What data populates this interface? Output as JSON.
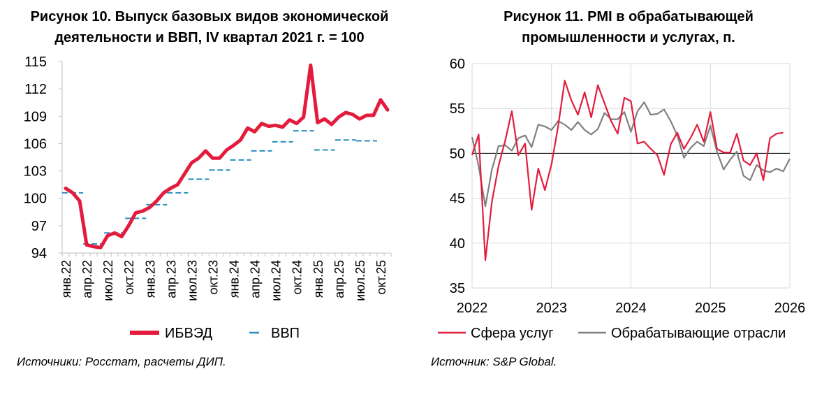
{
  "chart_data": [
    {
      "type": "line",
      "title": [
        "Рисунок 10. Выпуск базовых видов экономической",
        "деятельности и ВВП, IV квартал 2021 г. = 100"
      ],
      "ylim": [
        94,
        115
      ],
      "yticks": [
        "94",
        "97",
        "100",
        "103",
        "106",
        "109",
        "112",
        "115"
      ],
      "xticks": [
        "янв.22",
        "апр.22",
        "июл.22",
        "окт.22",
        "янв.23",
        "апр.23",
        "июл.23",
        "окт.23",
        "янв.24",
        "апр.24",
        "июл.24",
        "окт.24",
        "янв.25",
        "апр.25",
        "июл.25",
        "окт.25"
      ],
      "series": [
        {
          "name": "ИБВЭД",
          "color": "#e31c3d",
          "style": "solid",
          "values": [
            101.1,
            100.6,
            99.7,
            94.9,
            94.7,
            94.6,
            95.9,
            96.2,
            95.8,
            97.0,
            98.4,
            98.6,
            99.0,
            99.7,
            100.6,
            101.1,
            101.5,
            102.7,
            103.9,
            104.4,
            105.2,
            104.4,
            104.4,
            105.3,
            105.8,
            106.4,
            107.7,
            107.3,
            108.2,
            107.9,
            108.0,
            107.8,
            108.6,
            108.2,
            108.9,
            114.6,
            108.3,
            108.7,
            108.1,
            108.9,
            109.4,
            109.2,
            108.7,
            109.1,
            109.1,
            110.8,
            109.7
          ]
        },
        {
          "name": "ВВП",
          "color": "#2a8fbd",
          "style": "dash",
          "values": [
            100.6,
            95.0,
            96.2,
            97.8,
            99.3,
            100.6,
            102.1,
            103.1,
            104.2,
            105.2,
            106.2,
            107.4,
            105.3,
            106.4,
            106.3
          ]
        }
      ],
      "legend": [
        "ИБВЭД",
        "ВВП"
      ],
      "legend_position": "bottom",
      "source": "Источники: Росстат, расчеты ДИП."
    },
    {
      "type": "line",
      "title": [
        "Рисунок 11. PMI в обрабатывающей",
        "промышленности и услугах, п."
      ],
      "ylim": [
        35,
        60
      ],
      "yticks": [
        "35",
        "40",
        "45",
        "50",
        "55",
        "60"
      ],
      "xticks": [
        "2022",
        "2023",
        "2024",
        "2025",
        "2026"
      ],
      "xlim": [
        2022,
        2026
      ],
      "reference_line": 50,
      "series": [
        {
          "name": "Сфера услуг",
          "color": "#e31c3d",
          "x": [
            2022.0,
            2022.083,
            2022.167,
            2022.25,
            2022.333,
            2022.417,
            2022.5,
            2022.583,
            2022.667,
            2022.75,
            2022.833,
            2022.917,
            2023.0,
            2023.083,
            2023.167,
            2023.25,
            2023.333,
            2023.417,
            2023.5,
            2023.583,
            2023.667,
            2023.75,
            2023.833,
            2023.917,
            2024.0,
            2024.083,
            2024.167,
            2024.25,
            2024.333,
            2024.417,
            2024.5,
            2024.583,
            2024.667,
            2024.75,
            2024.833,
            2024.917,
            2025.0,
            2025.083,
            2025.167,
            2025.25,
            2025.333,
            2025.417,
            2025.5,
            2025.583,
            2025.667,
            2025.75,
            2025.833,
            2025.917
          ],
          "values": [
            49.8,
            52.1,
            38.1,
            44.6,
            48.6,
            51.4,
            54.7,
            49.8,
            51.1,
            43.7,
            48.3,
            45.9,
            48.8,
            53.0,
            58.1,
            55.9,
            54.3,
            56.8,
            54.0,
            57.6,
            55.6,
            53.6,
            52.2,
            56.2,
            55.8,
            51.1,
            51.3,
            50.5,
            49.8,
            47.6,
            51.0,
            52.3,
            50.5,
            51.7,
            53.2,
            51.3,
            54.6,
            50.5,
            50.1,
            50.1,
            52.2,
            49.2,
            48.7,
            50.0,
            47.0,
            51.7,
            52.2,
            52.3
          ]
        },
        {
          "name": "Обрабатывающие отрасли",
          "color": "#808080",
          "x": [
            2022.0,
            2022.083,
            2022.167,
            2022.25,
            2022.333,
            2022.417,
            2022.5,
            2022.583,
            2022.667,
            2022.75,
            2022.833,
            2022.917,
            2023.0,
            2023.083,
            2023.167,
            2023.25,
            2023.333,
            2023.417,
            2023.5,
            2023.583,
            2023.667,
            2023.75,
            2023.833,
            2023.917,
            2024.0,
            2024.083,
            2024.167,
            2024.25,
            2024.333,
            2024.417,
            2024.5,
            2024.583,
            2024.667,
            2024.75,
            2024.833,
            2024.917,
            2025.0,
            2025.083,
            2025.167,
            2025.25,
            2025.333,
            2025.417,
            2025.5,
            2025.583,
            2025.667,
            2025.75,
            2025.833,
            2025.917,
            2026.0
          ],
          "values": [
            51.8,
            48.6,
            44.1,
            48.2,
            50.8,
            50.9,
            50.3,
            51.7,
            52.0,
            50.7,
            53.2,
            53.0,
            52.6,
            53.6,
            53.2,
            52.6,
            53.5,
            52.6,
            52.1,
            52.7,
            54.5,
            53.8,
            53.8,
            54.6,
            52.4,
            54.7,
            55.7,
            54.3,
            54.4,
            54.9,
            53.6,
            52.0,
            49.5,
            50.6,
            51.3,
            50.8,
            53.1,
            50.2,
            48.2,
            49.3,
            50.2,
            47.5,
            47.0,
            48.7,
            48.1,
            47.9,
            48.3,
            48.0,
            49.4
          ]
        }
      ],
      "legend": [
        "Сфера услуг",
        "Обрабатывающие отрасли"
      ],
      "legend_position": "bottom",
      "source": "Источник: S&P Global."
    }
  ]
}
